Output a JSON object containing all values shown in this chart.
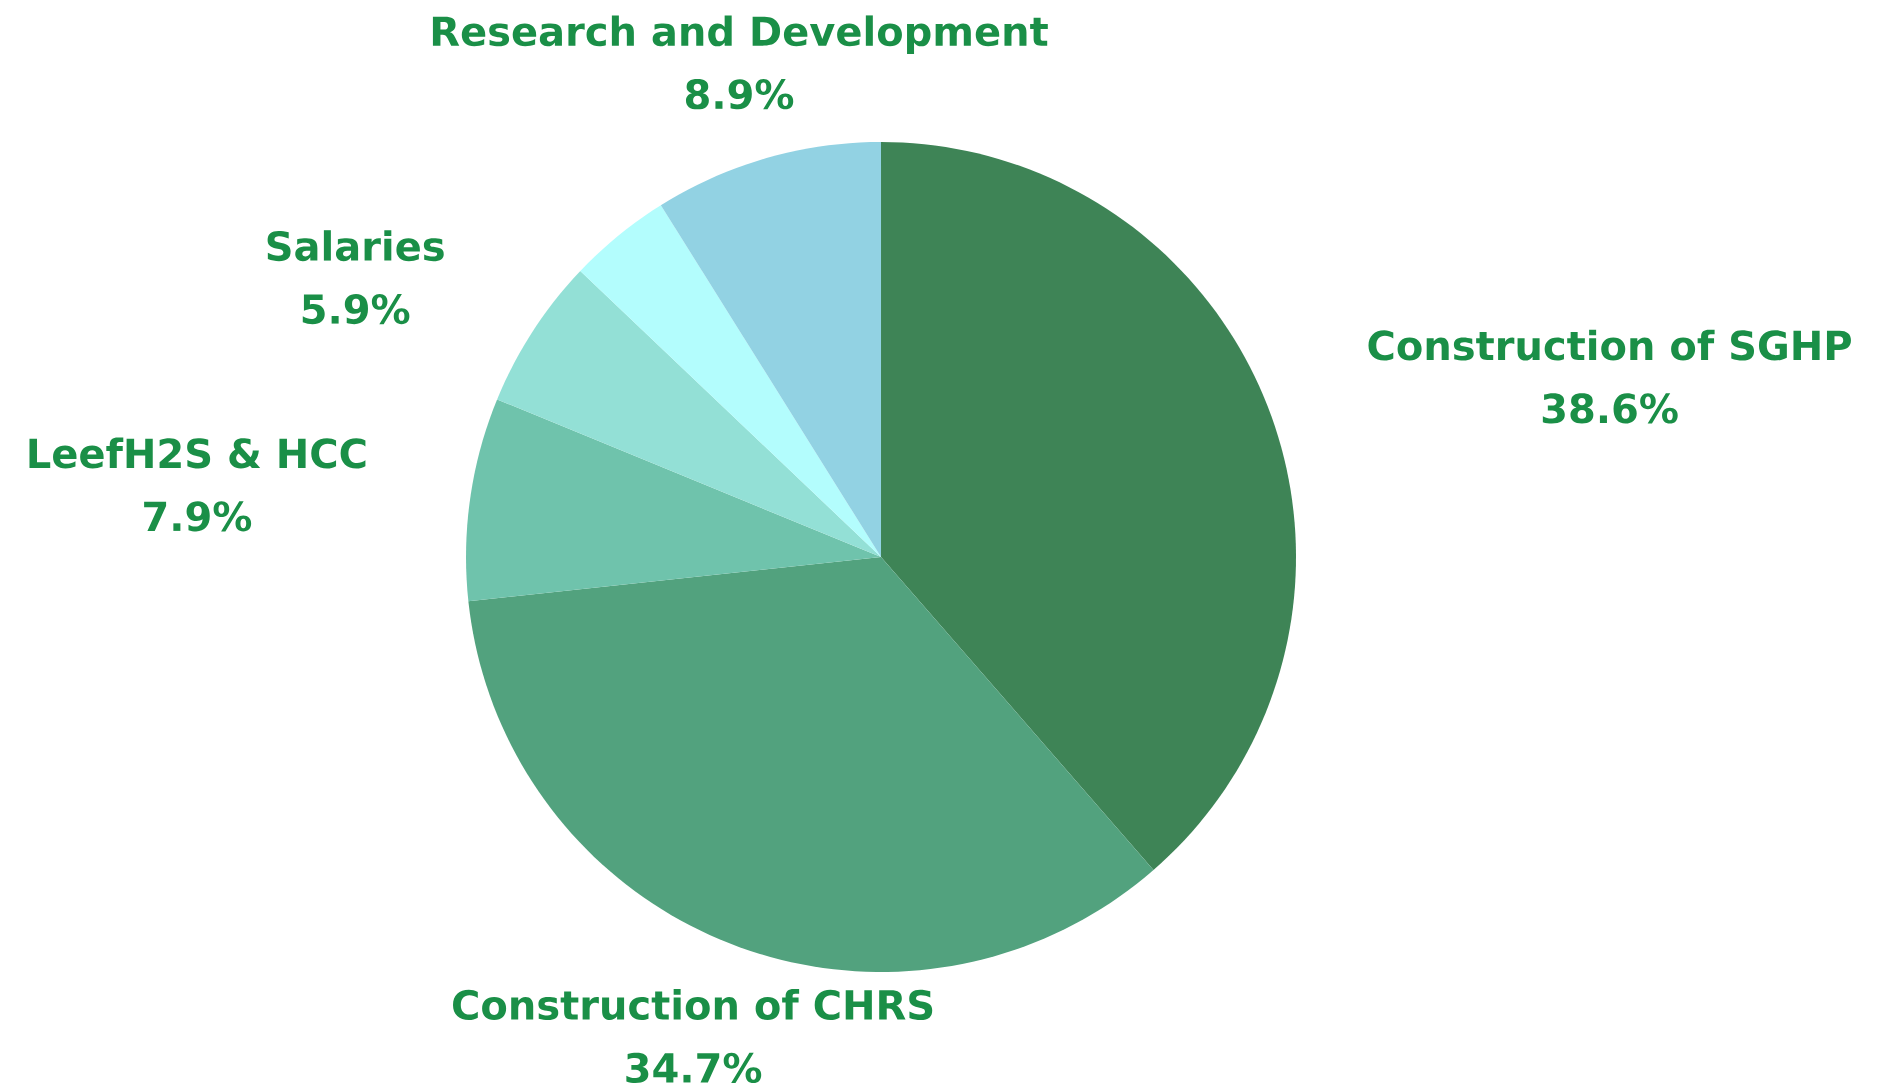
{
  "chart_data": {
    "type": "pie",
    "categories": [
      "Construction of SGHP",
      "Construction of CHRS",
      "LeefH2S & HCC",
      "Salaries",
      null,
      "Research and Development"
    ],
    "values": [
      38.6,
      34.7,
      7.9,
      5.9,
      4.0,
      8.9
    ],
    "value_labels": [
      "38.6%",
      "34.7%",
      "7.9%",
      "5.9%",
      null,
      "8.9%"
    ],
    "colors": [
      "#3e8456",
      "#52a27e",
      "#6fc3ac",
      "#93e0d6",
      "#b3fdfd",
      "#92d2e3"
    ]
  }
}
